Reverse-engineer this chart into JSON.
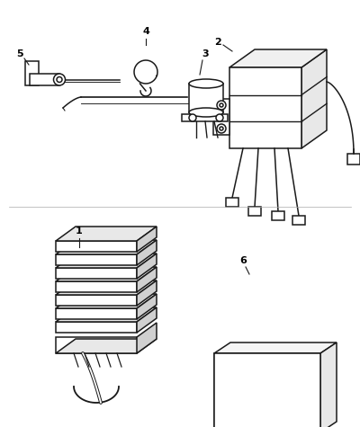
{
  "background_color": "#ffffff",
  "line_color": "#1a1a1a",
  "line_width": 1.1,
  "fig_width": 4.0,
  "fig_height": 4.75,
  "dpi": 100
}
